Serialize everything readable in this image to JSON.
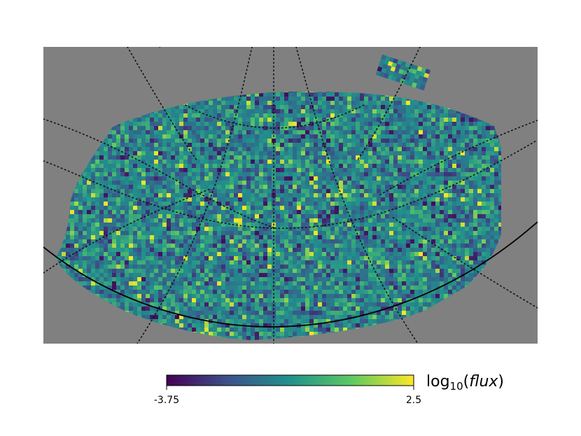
{
  "chart_data": {
    "type": "heatmap",
    "projection": "sky-map",
    "background_color": "#808080",
    "colormap": "viridis",
    "colormap_stops": [
      "#440154",
      "#3b528b",
      "#21918c",
      "#5ec962",
      "#fde725"
    ],
    "colorbar": {
      "label_prefix": "log",
      "label_sub": "10",
      "label_var": "flux",
      "min": -3.75,
      "max": 2.5,
      "tick_labels": [
        "-3.75",
        "2.5"
      ]
    },
    "value_distribution": {
      "mean": -0.9,
      "stdev": 0.8,
      "bright_fraction": 0.03,
      "dark_fraction": 0.06
    },
    "graticule": {
      "style": "dotted",
      "horizon_line": true
    }
  }
}
